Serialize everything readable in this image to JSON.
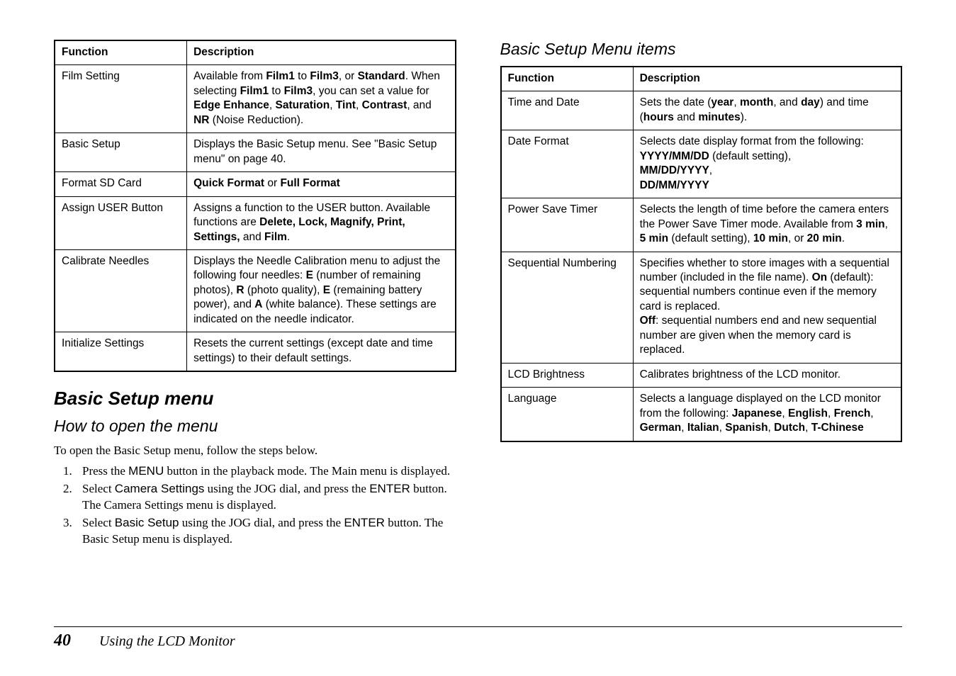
{
  "left": {
    "table": {
      "headers": {
        "func": "Function",
        "desc": "Description"
      },
      "rows": [
        {
          "func": "Film Setting",
          "desc": "Available from <b>Film1</b> to <b>Film3</b>, or <b>Standard</b>. When selecting <b>Film1</b> to <b>Film3</b>, you can set a value for <b>Edge Enhance</b>, <b>Saturation</b>, <b>Tint</b>, <b>Contrast</b>, and <b>NR</b> (Noise Reduction)."
        },
        {
          "func": "Basic Setup",
          "desc": "Displays the Basic Setup menu. See \"Basic Setup menu\" on page 40."
        },
        {
          "func": "Format SD Card",
          "desc": "<b>Quick Format</b> or <b>Full Format</b>"
        },
        {
          "func": "Assign USER Button",
          "desc": "Assigns a function to the USER button. Available functions are <b>Delete, Lock, Magnify, Print, Settings,</b> and <b>Film</b>."
        },
        {
          "func": "Calibrate Needles",
          "desc": "Displays the Needle Calibration menu to adjust the following four needles: <b>E</b> (number of remaining photos), <b>R</b> (photo quality), <b>E</b> (remaining battery power), and <b>A</b> (white balance). These settings are indicated on the needle indicator."
        },
        {
          "func": "Initialize Settings",
          "desc": "Resets the current settings (except date and time settings) to their default settings."
        }
      ]
    },
    "section_heading": "Basic Setup menu",
    "subheading": "How to open the menu",
    "intro": "To open the Basic Setup menu, follow the steps below.",
    "steps": [
      "Press the <span class='sans-in'>MENU</span> button in the playback mode. The Main menu is displayed.",
      "Select <span class='sans-in'>Camera Settings</span> using the JOG dial, and press the <span class='sans-in'>ENTER</span> button. The Camera Settings menu is displayed.",
      "Select <span class='sans-in'>Basic Setup</span> using the JOG dial, and press the <span class='sans-in'>ENTER</span> button. The Basic Setup menu is displayed."
    ]
  },
  "right": {
    "subheading": "Basic Setup Menu items",
    "table": {
      "headers": {
        "func": "Function",
        "desc": "Description"
      },
      "rows": [
        {
          "func": "Time and Date",
          "desc": "Sets the date (<b>year</b>, <b>month</b>, and <b>day</b>) and time (<b>hours</b> and <b>minutes</b>)."
        },
        {
          "func": "Date Format",
          "desc": "Selects date display format from the following: <b>YYYY/MM/DD</b> (default setting), <br><b>MM/DD/YYYY</b>, <br><b>DD/MM/YYYY</b>"
        },
        {
          "func": "Power Save Timer",
          "desc": "Selects the length of time before the camera enters the Power Save Timer mode. Available from <b>3 min</b>, <b>5 min</b> (default setting), <b>10 min</b>, or <b>20 min</b>."
        },
        {
          "func": "Sequential Numbering",
          "desc": "Specifies whether to store images with a sequential number (included in the file name). <b>On</b> (default): sequential numbers continue even if the memory card is replaced. <br><b>Off</b>: sequential numbers end and new sequential number are given when the memory card is replaced."
        },
        {
          "func": "LCD Brightness",
          "desc": "Calibrates brightness of the LCD monitor."
        },
        {
          "func": "Language",
          "desc": "Selects a language displayed on the LCD monitor from the following: <b>Japanese</b>, <b>English</b>, <b>French</b>, <b>German</b>, <b>Italian</b>, <b>Spanish</b>, <b>Dutch</b>, <b>T-Chinese</b>"
        }
      ]
    }
  },
  "footer": {
    "page_number": "40",
    "title": "Using the LCD Monitor"
  }
}
